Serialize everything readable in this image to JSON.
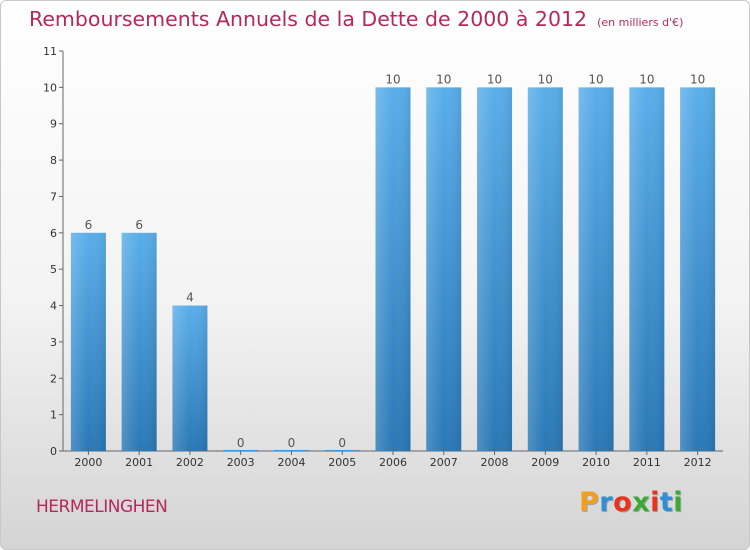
{
  "header": {
    "title": "Remboursements Annuels de la Dette de 2000 à 2012",
    "unit": "(en milliers d'€)"
  },
  "footer": {
    "city": "HERMELINGHEN",
    "logo": {
      "letters": [
        "P",
        "r",
        "o",
        "x",
        "i",
        "t",
        "i"
      ],
      "colors": [
        "#f0a01e",
        "#2e8fd6",
        "#e8331e",
        "#3aaa35",
        "#e8331e",
        "#2e8fd6",
        "#3aaa35"
      ]
    }
  },
  "chart_data": {
    "type": "bar",
    "title": "Remboursements Annuels de la Dette de 2000 à 2012",
    "categories": [
      "2000",
      "2001",
      "2002",
      "2003",
      "2004",
      "2005",
      "2006",
      "2007",
      "2008",
      "2009",
      "2010",
      "2011",
      "2012"
    ],
    "values": [
      6,
      6,
      4,
      0,
      0,
      0,
      10,
      10,
      10,
      10,
      10,
      10,
      10
    ],
    "data_labels": [
      "6",
      "6",
      "4",
      "0",
      "0",
      "0",
      "10",
      "10",
      "10",
      "10",
      "10",
      "10",
      "10"
    ],
    "ylim": [
      0,
      11
    ],
    "yticks": [
      "0",
      "1",
      "2",
      "3",
      "4",
      "5",
      "6",
      "7",
      "8",
      "9",
      "10",
      "11"
    ],
    "grid": false,
    "legend": "none",
    "colors": {
      "bar_top": "#5aaeea",
      "bar_bottom": "#2a78b6",
      "axis": "#666666",
      "text": "#333333"
    }
  }
}
